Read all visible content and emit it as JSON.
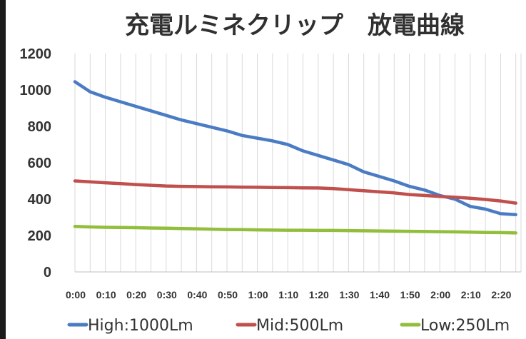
{
  "chart_data": {
    "type": "line",
    "title": "充電ルミネクリップ　放電曲線",
    "xlabel": "",
    "ylabel": "",
    "ylim": [
      0,
      1200
    ],
    "yticks": [
      0,
      200,
      400,
      600,
      800,
      1000,
      1200
    ],
    "grid": "vertical",
    "legend_position": "bottom",
    "categories": [
      "0:00",
      "0:05",
      "0:10",
      "0:15",
      "0:20",
      "0:25",
      "0:30",
      "0:35",
      "0:40",
      "0:45",
      "0:50",
      "0:55",
      "1:00",
      "1:05",
      "1:10",
      "1:15",
      "1:20",
      "1:25",
      "1:30",
      "1:35",
      "1:40",
      "1:45",
      "1:50",
      "1:55",
      "2:00",
      "2:05",
      "2:10",
      "2:15",
      "2:20",
      "2:25"
    ],
    "tick_labels": [
      "0:00",
      "0:10",
      "0:20",
      "0:30",
      "0:40",
      "0:50",
      "1:00",
      "1:10",
      "1:20",
      "1:30",
      "1:40",
      "1:50",
      "2:00",
      "2:10",
      "2:20"
    ],
    "series": [
      {
        "name": "High:1000Lm",
        "color": "#4a7cc4",
        "values": [
          1045,
          990,
          960,
          935,
          910,
          885,
          860,
          835,
          815,
          795,
          775,
          750,
          735,
          720,
          700,
          665,
          640,
          615,
          590,
          550,
          525,
          500,
          470,
          450,
          420,
          400,
          360,
          345,
          320,
          315
        ]
      },
      {
        "name": "Mid:500Lm",
        "color": "#c0504d",
        "values": [
          500,
          495,
          490,
          485,
          480,
          476,
          472,
          470,
          469,
          468,
          467,
          466,
          465,
          464,
          463,
          462,
          461,
          458,
          452,
          446,
          440,
          434,
          425,
          420,
          415,
          410,
          405,
          398,
          390,
          378
        ]
      },
      {
        "name": "Low:250Lm",
        "color": "#92be3c",
        "values": [
          250,
          247,
          245,
          244,
          243,
          241,
          240,
          238,
          237,
          235,
          233,
          232,
          231,
          230,
          229,
          229,
          228,
          228,
          227,
          226,
          225,
          224,
          223,
          222,
          221,
          220,
          219,
          217,
          216,
          214
        ]
      }
    ]
  }
}
